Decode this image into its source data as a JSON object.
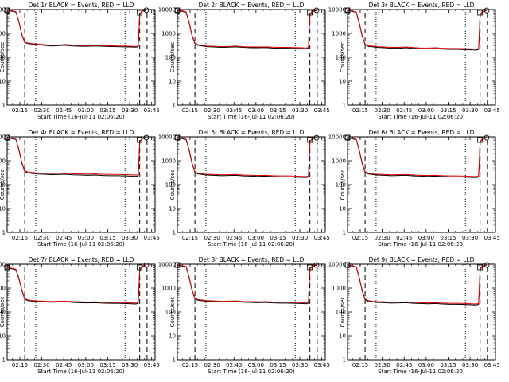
{
  "chart_data": {
    "type": "line",
    "layout": "3x3 small multiples",
    "xlabel": "Start Time (16-Jul-11 02:06:20)",
    "ylabel": "Counts/sec",
    "yscale": "log",
    "ylim": [
      1,
      10000
    ],
    "y_ticks": [
      "1",
      "10",
      "100",
      "1000",
      "10000"
    ],
    "xlim_minutes_from_start": [
      0,
      101
    ],
    "x_ticks": [
      {
        "label": "02:15",
        "minute": 8.67
      },
      {
        "label": "02:30",
        "minute": 23.67
      },
      {
        "label": "02:45",
        "minute": 38.67
      },
      {
        "label": "03:00",
        "minute": 53.67
      },
      {
        "label": "03:15",
        "minute": 68.67
      },
      {
        "label": "03:30",
        "minute": 83.67
      },
      {
        "label": "03:45",
        "minute": 98.67
      }
    ],
    "legend": {
      "black": "Events",
      "red": "LLD"
    },
    "colors": {
      "events": "#000000",
      "lld": "#e00000",
      "axes": "#000000"
    },
    "markers": {
      "dashed_lines_min": [
        12.0,
        90.5,
        95.5
      ],
      "dotted_lines_min": [
        19.5,
        80.5
      ]
    },
    "panels": [
      {
        "title": "Det 1r BLACK = Events, RED = LLD",
        "events": {
          "x": [
            0,
            3,
            6,
            8,
            10,
            12,
            14,
            20,
            25,
            30,
            35,
            40,
            45,
            50,
            55,
            60,
            65,
            70,
            75,
            80,
            85,
            88,
            89.5,
            90,
            90.5,
            92,
            95
          ],
          "y": [
            9000,
            8600,
            7800,
            3000,
            900,
            420,
            380,
            340,
            320,
            300,
            310,
            320,
            300,
            290,
            290,
            300,
            290,
            285,
            280,
            275,
            270,
            265,
            280,
            1200,
            6000,
            8500,
            9000
          ]
        },
        "lld": {
          "x": [
            0,
            3,
            6,
            8,
            10,
            12,
            14,
            20,
            25,
            30,
            35,
            40,
            45,
            50,
            55,
            60,
            65,
            70,
            75,
            80,
            85,
            88,
            89.5,
            90,
            90.5,
            92,
            95
          ],
          "y": [
            9300,
            8900,
            8100,
            3200,
            950,
            440,
            400,
            360,
            340,
            320,
            330,
            345,
            325,
            315,
            310,
            320,
            310,
            305,
            300,
            295,
            290,
            285,
            300,
            1300,
            6300,
            8800,
            9400
          ]
        }
      },
      {
        "title": "Det 2r BLACK = Events, RED = LLD",
        "events": {
          "x": [
            0,
            3,
            6,
            8,
            10,
            12,
            14,
            20,
            25,
            30,
            35,
            40,
            45,
            50,
            55,
            60,
            65,
            70,
            75,
            80,
            85,
            88,
            89.5,
            90,
            90.5,
            92,
            95
          ],
          "y": [
            9000,
            8500,
            7600,
            2800,
            800,
            380,
            320,
            280,
            270,
            260,
            265,
            275,
            260,
            250,
            250,
            255,
            245,
            240,
            240,
            235,
            230,
            225,
            240,
            1100,
            5800,
            8400,
            8900
          ]
        },
        "lld": {
          "x": [
            0,
            3,
            6,
            8,
            10,
            12,
            14,
            20,
            25,
            30,
            35,
            40,
            45,
            50,
            55,
            60,
            65,
            70,
            75,
            80,
            85,
            88,
            89.5,
            90,
            90.5,
            92,
            95
          ],
          "y": [
            9300,
            8800,
            7900,
            3000,
            850,
            400,
            340,
            300,
            290,
            280,
            285,
            295,
            280,
            270,
            270,
            275,
            265,
            260,
            260,
            255,
            250,
            245,
            260,
            1200,
            6100,
            8700,
            9300
          ]
        }
      },
      {
        "title": "Det 3r BLACK = Events, RED = LLD",
        "events": {
          "x": [
            0,
            3,
            6,
            8,
            10,
            12,
            14,
            20,
            25,
            30,
            35,
            40,
            45,
            50,
            55,
            60,
            65,
            70,
            75,
            80,
            85,
            88,
            89.5,
            90,
            90.5,
            92,
            95
          ],
          "y": [
            9000,
            8400,
            7500,
            2700,
            760,
            340,
            290,
            260,
            250,
            240,
            240,
            250,
            235,
            225,
            225,
            230,
            220,
            215,
            215,
            210,
            205,
            200,
            215,
            1000,
            5600,
            8300,
            8900
          ]
        },
        "lld": {
          "x": [
            0,
            3,
            6,
            8,
            10,
            12,
            14,
            20,
            25,
            30,
            35,
            40,
            45,
            50,
            55,
            60,
            65,
            70,
            75,
            80,
            85,
            88,
            89.5,
            90,
            90.5,
            92,
            95
          ],
          "y": [
            9300,
            8700,
            7800,
            2900,
            800,
            360,
            310,
            280,
            270,
            260,
            260,
            270,
            255,
            245,
            245,
            250,
            240,
            235,
            235,
            230,
            225,
            220,
            235,
            1100,
            5900,
            8600,
            9200
          ]
        }
      },
      {
        "title": "Det 4r BLACK = Events, RED = LLD",
        "events": {
          "x": [
            0,
            3,
            6,
            8,
            10,
            12,
            14,
            20,
            25,
            30,
            35,
            40,
            45,
            50,
            55,
            60,
            65,
            70,
            75,
            80,
            85,
            88,
            89.5,
            90,
            90.5,
            92,
            95
          ],
          "y": [
            9000,
            8500,
            7700,
            2900,
            820,
            360,
            310,
            280,
            270,
            260,
            265,
            270,
            255,
            250,
            245,
            250,
            240,
            235,
            235,
            230,
            225,
            220,
            235,
            1050,
            5700,
            8400,
            8900
          ]
        },
        "lld": {
          "x": [
            0,
            3,
            6,
            8,
            10,
            12,
            14,
            20,
            25,
            30,
            35,
            40,
            45,
            50,
            55,
            60,
            65,
            70,
            75,
            80,
            85,
            88,
            89.5,
            90,
            90.5,
            92,
            95
          ],
          "y": [
            9300,
            8800,
            8000,
            3100,
            870,
            390,
            340,
            310,
            300,
            290,
            295,
            300,
            285,
            280,
            275,
            280,
            270,
            265,
            265,
            260,
            255,
            250,
            265,
            1150,
            6000,
            8700,
            9300
          ]
        }
      },
      {
        "title": "Det 5r BLACK = Events, RED = LLD",
        "events": {
          "x": [
            0,
            3,
            6,
            8,
            10,
            12,
            14,
            20,
            25,
            30,
            35,
            40,
            45,
            50,
            55,
            60,
            65,
            70,
            75,
            80,
            85,
            88,
            89.5,
            90,
            90.5,
            92,
            95
          ],
          "y": [
            9000,
            8500,
            7600,
            2800,
            780,
            330,
            280,
            250,
            245,
            235,
            240,
            245,
            230,
            225,
            220,
            225,
            215,
            210,
            210,
            205,
            200,
            195,
            210,
            1000,
            5600,
            8300,
            8900
          ]
        },
        "lld": {
          "x": [
            0,
            3,
            6,
            8,
            10,
            12,
            14,
            20,
            25,
            30,
            35,
            40,
            45,
            50,
            55,
            60,
            65,
            70,
            75,
            80,
            85,
            88,
            89.5,
            90,
            90.5,
            92,
            95
          ],
          "y": [
            9300,
            8800,
            7900,
            3000,
            830,
            350,
            300,
            270,
            265,
            255,
            260,
            265,
            250,
            245,
            240,
            245,
            235,
            230,
            230,
            225,
            220,
            215,
            230,
            1100,
            5900,
            8600,
            9200
          ]
        }
      },
      {
        "title": "Det 6r BLACK = Events, RED = LLD",
        "events": {
          "x": [
            0,
            3,
            6,
            8,
            10,
            12,
            14,
            20,
            25,
            30,
            35,
            40,
            45,
            50,
            55,
            60,
            65,
            70,
            75,
            80,
            85,
            88,
            89.5,
            90,
            90.5,
            92,
            95
          ],
          "y": [
            9000,
            8400,
            7500,
            2700,
            760,
            330,
            280,
            250,
            245,
            235,
            240,
            245,
            230,
            225,
            220,
            225,
            215,
            210,
            210,
            205,
            200,
            195,
            210,
            1000,
            5600,
            8300,
            8900
          ]
        },
        "lld": {
          "x": [
            0,
            3,
            6,
            8,
            10,
            12,
            14,
            20,
            25,
            30,
            35,
            40,
            45,
            50,
            55,
            60,
            65,
            70,
            75,
            80,
            85,
            88,
            89.5,
            90,
            90.5,
            92,
            95
          ],
          "y": [
            9300,
            8700,
            7800,
            2900,
            810,
            350,
            300,
            270,
            265,
            255,
            260,
            265,
            250,
            245,
            240,
            245,
            235,
            230,
            230,
            225,
            220,
            215,
            230,
            1100,
            5900,
            8600,
            9200
          ]
        }
      },
      {
        "title": "Det 7r BLACK = Events, RED = LLD",
        "events": {
          "x": [
            0,
            3,
            6,
            8,
            10,
            12,
            14,
            20,
            25,
            30,
            35,
            40,
            45,
            50,
            55,
            60,
            65,
            70,
            75,
            80,
            85,
            88,
            89.5,
            90,
            90.5,
            92,
            95
          ],
          "y": [
            7000,
            6500,
            5800,
            2500,
            800,
            340,
            300,
            270,
            265,
            255,
            260,
            265,
            250,
            245,
            240,
            245,
            235,
            230,
            230,
            225,
            220,
            215,
            230,
            1000,
            5400,
            8200,
            8800
          ]
        },
        "lld": {
          "x": [
            0,
            3,
            6,
            8,
            10,
            12,
            14,
            20,
            25,
            30,
            35,
            40,
            45,
            50,
            55,
            60,
            65,
            70,
            75,
            80,
            85,
            88,
            89.5,
            90,
            90.5,
            92,
            95
          ],
          "y": [
            7300,
            6800,
            6100,
            2700,
            850,
            360,
            320,
            290,
            285,
            275,
            280,
            285,
            270,
            265,
            260,
            265,
            255,
            250,
            250,
            245,
            240,
            235,
            250,
            1100,
            5700,
            8500,
            9100
          ]
        }
      },
      {
        "title": "Det 8r BLACK = Events, RED = LLD",
        "events": {
          "x": [
            0,
            3,
            6,
            8,
            10,
            12,
            14,
            20,
            25,
            30,
            35,
            40,
            45,
            50,
            55,
            60,
            65,
            70,
            75,
            80,
            85,
            88,
            89.5,
            90,
            90.5,
            92,
            95
          ],
          "y": [
            9000,
            8500,
            7600,
            2800,
            800,
            360,
            310,
            280,
            270,
            260,
            265,
            270,
            255,
            250,
            245,
            250,
            240,
            235,
            235,
            230,
            225,
            220,
            235,
            1050,
            5700,
            8400,
            8900
          ]
        },
        "lld": {
          "x": [
            0,
            3,
            6,
            8,
            10,
            12,
            14,
            20,
            25,
            30,
            35,
            40,
            45,
            50,
            55,
            60,
            65,
            70,
            75,
            80,
            85,
            88,
            89.5,
            90,
            90.5,
            92,
            95
          ],
          "y": [
            9300,
            8800,
            7900,
            3000,
            850,
            380,
            330,
            300,
            290,
            280,
            285,
            290,
            275,
            270,
            265,
            270,
            260,
            255,
            255,
            250,
            245,
            240,
            255,
            1150,
            6000,
            8700,
            9300
          ]
        }
      },
      {
        "title": "Det 9r BLACK = Events, RED = LLD",
        "events": {
          "x": [
            0,
            3,
            6,
            8,
            10,
            12,
            14,
            20,
            25,
            30,
            35,
            40,
            45,
            50,
            55,
            60,
            65,
            70,
            75,
            80,
            85,
            88,
            89.5,
            90,
            90.5,
            92,
            95
          ],
          "y": [
            9000,
            8400,
            7500,
            2700,
            760,
            330,
            280,
            250,
            245,
            235,
            240,
            245,
            230,
            225,
            220,
            225,
            215,
            210,
            210,
            205,
            200,
            195,
            210,
            1000,
            5600,
            8300,
            8900
          ]
        },
        "lld": {
          "x": [
            0,
            3,
            6,
            8,
            10,
            12,
            14,
            20,
            25,
            30,
            35,
            40,
            45,
            50,
            55,
            60,
            65,
            70,
            75,
            80,
            85,
            88,
            89.5,
            90,
            90.5,
            92,
            95
          ],
          "y": [
            9300,
            8700,
            7800,
            2900,
            810,
            350,
            300,
            270,
            265,
            255,
            260,
            265,
            250,
            245,
            240,
            245,
            235,
            230,
            230,
            225,
            220,
            215,
            230,
            1100,
            5900,
            8600,
            9200
          ]
        }
      }
    ]
  }
}
